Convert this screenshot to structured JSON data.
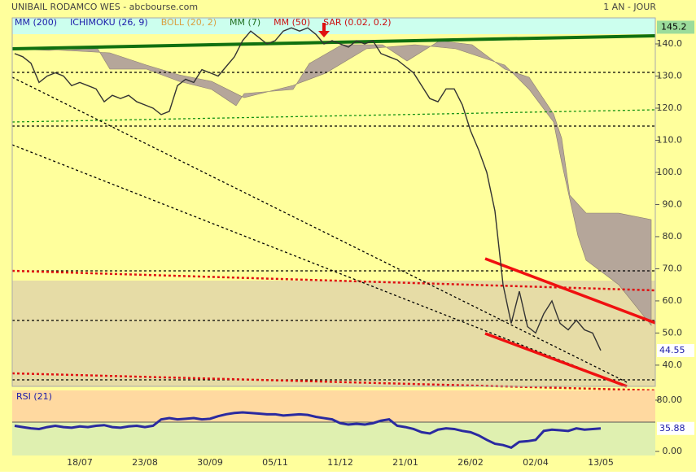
{
  "header": {
    "title": "UNIBAIL RODAMCO WES - abcbourse.com",
    "period": "1 AN - JOUR"
  },
  "indicators": [
    {
      "name": "MM (200)",
      "color": "#1a1aa8"
    },
    {
      "name": "ICHIMOKU (26, 9)",
      "color": "#1a1aa8"
    },
    {
      "name": "BOLL (20, 2)",
      "color": "#d9a040"
    },
    {
      "name": "MM (7)",
      "color": "#207020"
    },
    {
      "name": "MM (50)",
      "color": "#cc1010"
    },
    {
      "name": "SAR (0.02, 0.2)",
      "color": "#cc1010"
    }
  ],
  "chart_data": [
    {
      "type": "line",
      "color": "#333333",
      "categories": [
        null,
        null,
        null,
        null,
        null,
        null,
        null,
        null,
        "18/07",
        null,
        null,
        null,
        null,
        null,
        null,
        null,
        "23/08",
        null,
        null,
        null,
        null,
        null,
        null,
        null,
        "30/09",
        null,
        null,
        null,
        null,
        null,
        null,
        null,
        "05/11",
        null,
        null,
        null,
        null,
        null,
        null,
        null,
        "11/12",
        null,
        null,
        null,
        null,
        null,
        null,
        null,
        "21/01",
        null,
        null,
        null,
        null,
        null,
        null,
        null,
        "26/02",
        null,
        null,
        null,
        null,
        null,
        null,
        null,
        "02/04",
        null,
        null,
        null,
        null,
        null,
        null,
        null,
        "13/05"
      ],
      "values": [
        137,
        136,
        134,
        128,
        130,
        131,
        130,
        127,
        128,
        127,
        126,
        122,
        124,
        123,
        124,
        122,
        121,
        120,
        118,
        119,
        127,
        129,
        128,
        132,
        131,
        130,
        133,
        136,
        141,
        144,
        142,
        140,
        141,
        144,
        145,
        144,
        145,
        143,
        140,
        141,
        140,
        139,
        141,
        140,
        141,
        137,
        136,
        135,
        133,
        131,
        127,
        123,
        122,
        126,
        126,
        121,
        113,
        107,
        100,
        88,
        65,
        53,
        63,
        52,
        50,
        56,
        60,
        53,
        51,
        54,
        51,
        50,
        44.55
      ],
      "resistance": 145.2,
      "ylim": [
        33.4,
        148.1
      ],
      "yticks": [
        {
          "value": 40,
          "label": "40.0"
        },
        {
          "value": 50,
          "label": "50.0"
        },
        {
          "value": 60,
          "label": "60.0"
        },
        {
          "value": 70,
          "label": "70.0"
        },
        {
          "value": 80,
          "label": "80.0"
        },
        {
          "value": 90,
          "label": "90.0"
        },
        {
          "value": 100,
          "label": "100.0"
        },
        {
          "value": 110,
          "label": "110.0"
        },
        {
          "value": 120,
          "label": "120.0"
        },
        {
          "value": 130,
          "label": "130.0"
        },
        {
          "value": 140,
          "label": "140.0"
        }
      ]
    },
    {
      "type": "line",
      "title": "RSI (21)",
      "color": "#2a2aa0",
      "values": [
        40,
        38,
        36,
        35,
        38,
        40,
        38,
        37,
        39,
        38,
        40,
        41,
        38,
        37,
        39,
        40,
        38,
        40,
        50,
        52,
        50,
        51,
        52,
        50,
        51,
        55,
        58,
        60,
        61,
        60,
        59,
        58,
        58,
        56,
        57,
        58,
        57,
        54,
        52,
        50,
        44,
        42,
        43,
        42,
        44,
        48,
        50,
        40,
        38,
        35,
        30,
        28,
        34,
        36,
        35,
        32,
        30,
        25,
        18,
        12,
        10,
        6,
        15,
        16,
        18,
        32,
        34,
        33,
        32,
        36,
        34,
        35,
        35.88
      ],
      "ylim": [
        -6.3,
        95.2
      ],
      "yticks": [
        {
          "value": 0,
          "label": "0.00"
        },
        {
          "value": 80,
          "label": "80.00"
        }
      ]
    }
  ]
}
